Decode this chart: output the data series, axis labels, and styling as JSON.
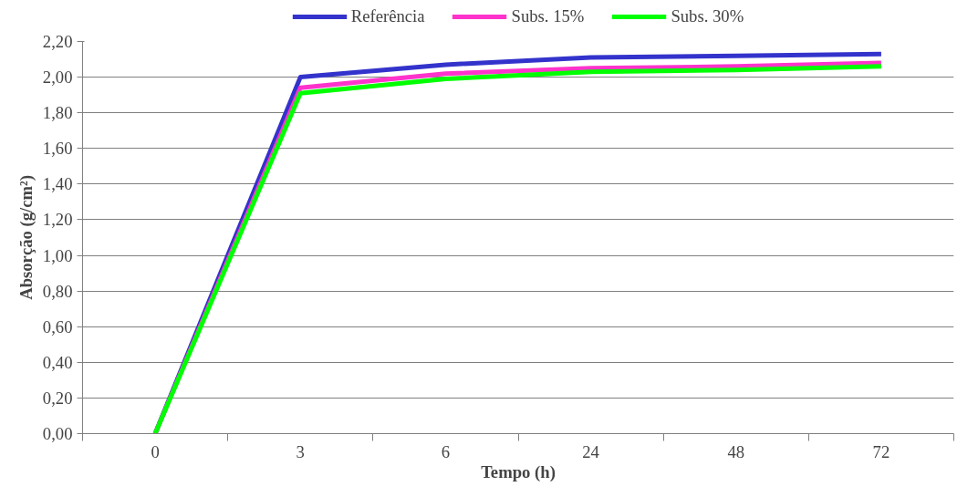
{
  "chart_data": {
    "type": "line",
    "xlabel": "Tempo (h)",
    "ylabel": "Absorção (g/cm²)",
    "categories": [
      "0",
      "3",
      "6",
      "24",
      "48",
      "72"
    ],
    "series": [
      {
        "name": "Referência",
        "color": "#3333cc",
        "values": [
          0,
          2.0,
          2.07,
          2.11,
          2.12,
          2.13
        ]
      },
      {
        "name": "Subs. 15%",
        "color": "#ff33cc",
        "values": [
          0,
          1.94,
          2.02,
          2.05,
          2.06,
          2.08
        ]
      },
      {
        "name": "Subs. 30%",
        "color": "#00ff00",
        "values": [
          0,
          1.91,
          1.99,
          2.03,
          2.04,
          2.06
        ]
      }
    ],
    "ylim": [
      0,
      2.2
    ],
    "yticks": [
      {
        "value": 0,
        "label": "0,00"
      },
      {
        "value": 0.2,
        "label": "0,20"
      },
      {
        "value": 0.4,
        "label": "0,40"
      },
      {
        "value": 0.6,
        "label": "0,60"
      },
      {
        "value": 0.8,
        "label": "0,80"
      },
      {
        "value": 1.0,
        "label": "1,00"
      },
      {
        "value": 1.2,
        "label": "1,20"
      },
      {
        "value": 1.4,
        "label": "1,40"
      },
      {
        "value": 1.6,
        "label": "1,60"
      },
      {
        "value": 1.8,
        "label": "1,80"
      },
      {
        "value": 2.0,
        "label": "2,00"
      },
      {
        "value": 2.2,
        "label": "2,20"
      }
    ],
    "grid": "y",
    "legend": "top",
    "marker": "none",
    "line_style": "solid"
  }
}
